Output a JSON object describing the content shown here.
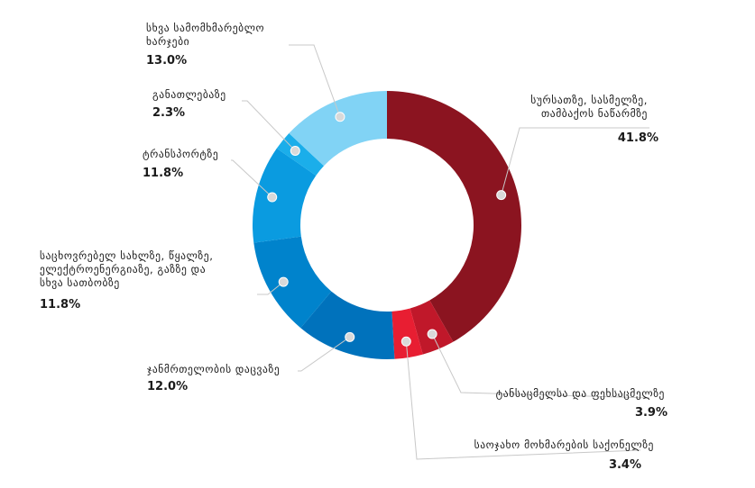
{
  "chart_data": {
    "type": "pie",
    "variant": "donut",
    "title": "",
    "slices": [
      {
        "label": "სურსათზე, სასმელზე,\nთამბაქოს ნაწარმზე",
        "value": 41.8,
        "value_label": "41.8%",
        "color": "#8B1420"
      },
      {
        "label": "ტანსაცმელსა და ფეხსაცმელზე",
        "value": 3.9,
        "value_label": "3.9%",
        "color": "#C0182A"
      },
      {
        "label": "საოჯახო მოხმარების საქონელზე",
        "value": 3.4,
        "value_label": "3.4%",
        "color": "#E81E32"
      },
      {
        "label": "ჯანმრთელობის დაცვაზე",
        "value": 12.0,
        "value_label": "12.0%",
        "color": "#0072BC"
      },
      {
        "label": "საცხოვრებელ სახლზე, წყალზე,\nელექტროენერგიაზე, გაზზე და\nსხვა სათბობზე",
        "value": 11.8,
        "value_label": "11.8%",
        "color": "#0083CC"
      },
      {
        "label": "ტრანსპორტზე",
        "value": 11.8,
        "value_label": "11.8%",
        "color": "#0A9BE0"
      },
      {
        "label": "განათლებაზე",
        "value": 2.3,
        "value_label": "2.3%",
        "color": "#1BAEEA"
      },
      {
        "label": "სხვა სამომხმარებლო\nხარჯები",
        "value": 13.0,
        "value_label": "13.0%",
        "color": "#81D3F5"
      }
    ]
  }
}
